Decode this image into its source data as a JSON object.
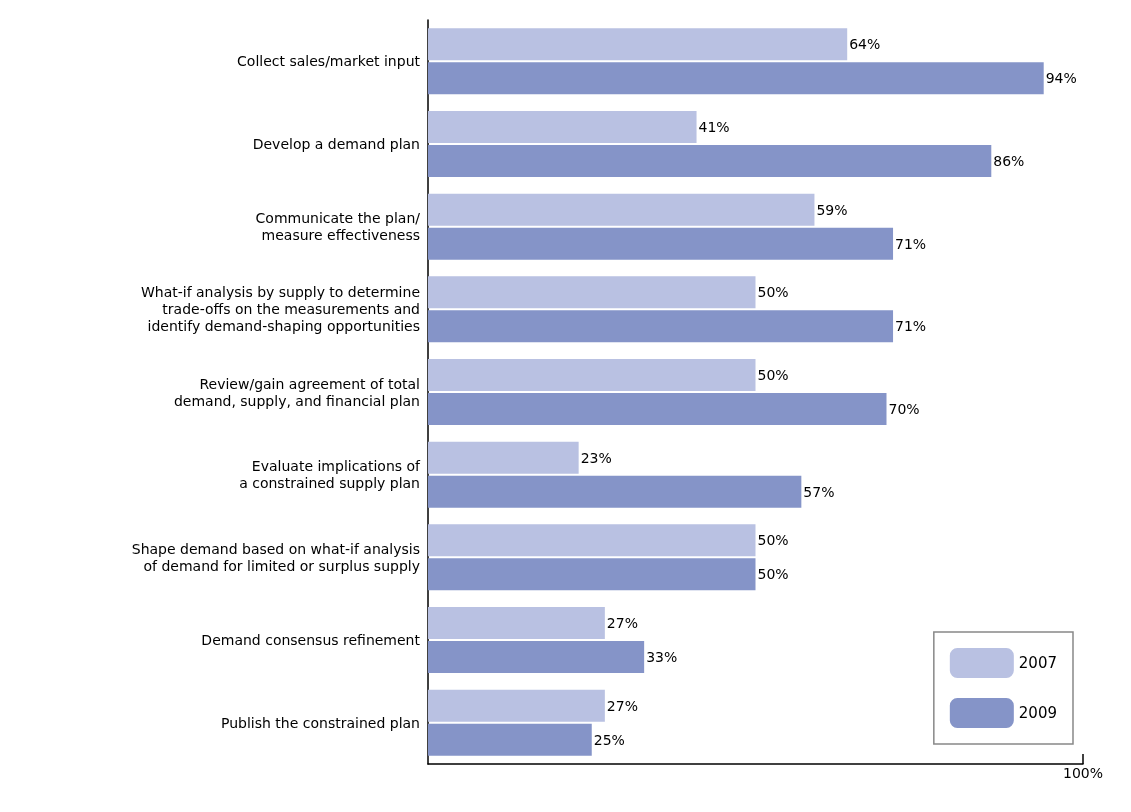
{
  "chart_data": {
    "type": "bar",
    "orientation": "horizontal",
    "categories": [
      "Collect sales/market input",
      "Develop a demand plan",
      "Communicate the plan/\nmeasure effectiveness",
      "What-if analysis by supply to determine\ntrade-offs on the measurements and\nidentify demand-shaping opportunities",
      "Review/gain agreement of total\ndemand, supply, and financial plan",
      "Evaluate implications of\na constrained supply plan",
      "Shape demand based on what-if analysis\nof demand for limited or surplus supply",
      "Demand consensus refinement",
      "Publish the constrained plan"
    ],
    "series": [
      {
        "name": "2007",
        "color": "#b9c1e2",
        "values": [
          64,
          41,
          59,
          50,
          50,
          23,
          50,
          27,
          27
        ],
        "value_labels": [
          "64%",
          "41%",
          "59%",
          "50%",
          "50%",
          "23%",
          "50%",
          "27%",
          "27%"
        ]
      },
      {
        "name": "2009",
        "color": "#8594c8",
        "values": [
          94,
          86,
          71,
          71,
          70,
          57,
          50,
          33,
          25
        ],
        "value_labels": [
          "94%",
          "86%",
          "71%",
          "71%",
          "70%",
          "57%",
          "50%",
          "33%",
          "25%"
        ]
      }
    ],
    "xlim": [
      0,
      100
    ],
    "xticks": [
      {
        "value": 100,
        "label": "100%"
      }
    ],
    "grid": false,
    "legend": "bottom right"
  }
}
